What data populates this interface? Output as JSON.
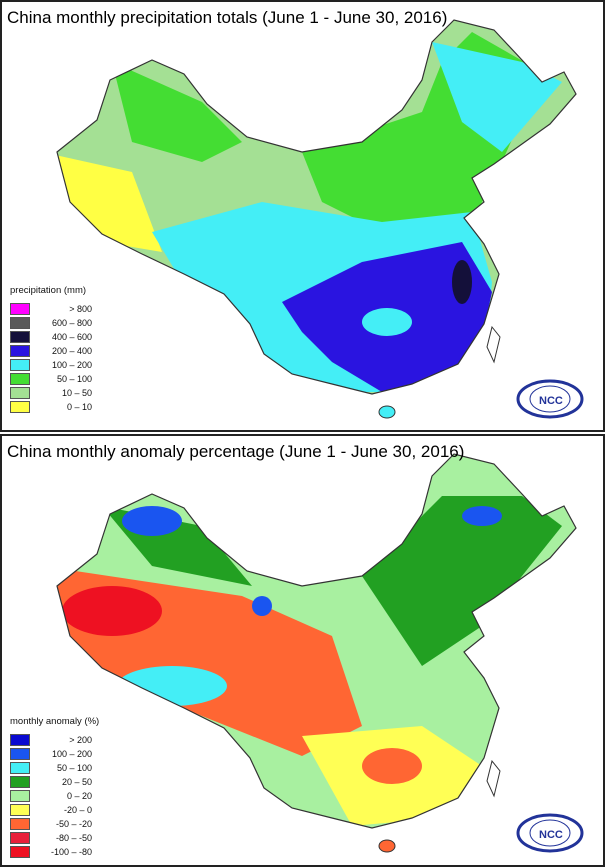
{
  "panels": [
    {
      "title": "China monthly precipitation totals (June 1 - June 30, 2016)",
      "legend_title": "precipitation (mm)",
      "legend": [
        {
          "label": "> 800",
          "color": "#ff00ff"
        },
        {
          "label": "600 – 800",
          "color": "#5a5a5a"
        },
        {
          "label": "400 – 600",
          "color": "#14103a"
        },
        {
          "label": "200 – 400",
          "color": "#2a14e0"
        },
        {
          "label": "100 – 200",
          "color": "#44eef6"
        },
        {
          "label": "50 – 100",
          "color": "#44dd33"
        },
        {
          "label": "10 – 50",
          "color": "#a4e094"
        },
        {
          "label": "0 – 10",
          "color": "#ffff44"
        }
      ]
    },
    {
      "title": "China monthly anomaly percentage (June 1 - June 30, 2016)",
      "legend_title": "monthly anomaly (%)",
      "legend": [
        {
          "label": "> 200",
          "color": "#0a0ad0"
        },
        {
          "label": "100 – 200",
          "color": "#1a55f0"
        },
        {
          "label": "50 – 100",
          "color": "#44eef6"
        },
        {
          "label": "20 – 50",
          "color": "#22a022"
        },
        {
          "label": "0 – 20",
          "color": "#a8f0a0"
        },
        {
          "label": "-20 – 0",
          "color": "#ffff55"
        },
        {
          "label": "-50 – -20",
          "color": "#ff6633"
        },
        {
          "label": "-80 – -50",
          "color": "#e8203a"
        },
        {
          "label": "-100 – -80",
          "color": "#ee1122"
        }
      ]
    }
  ],
  "logo_text": "NCC"
}
